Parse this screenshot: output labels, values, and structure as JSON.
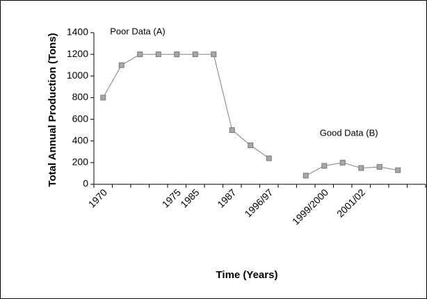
{
  "chart_data": {
    "type": "line",
    "ylabel": "Total Annual Production (Tons)",
    "xlabel": "Time (Years)",
    "categories": [
      "1970",
      null,
      null,
      null,
      "1975",
      "1985",
      null,
      "1987",
      null,
      "1996/97",
      null,
      null,
      "1999/2000",
      null,
      "2001/02",
      null,
      null,
      null
    ],
    "series": [
      {
        "name": "Poor Data (A)",
        "color": "#808080",
        "values": [
          800,
          1100,
          1200,
          1200,
          1200,
          1200,
          1200,
          500,
          360,
          240,
          null,
          null,
          null,
          null,
          null,
          null,
          null,
          null
        ]
      },
      {
        "name": "Good Data (B)",
        "color": "#808080",
        "values": [
          null,
          null,
          null,
          null,
          null,
          null,
          null,
          null,
          null,
          null,
          null,
          80,
          170,
          200,
          150,
          160,
          130,
          null
        ]
      }
    ],
    "ylim": [
      0,
      1400
    ],
    "yticks": [
      0,
      200,
      400,
      600,
      800,
      1000,
      1200,
      1400
    ],
    "grid": false
  }
}
